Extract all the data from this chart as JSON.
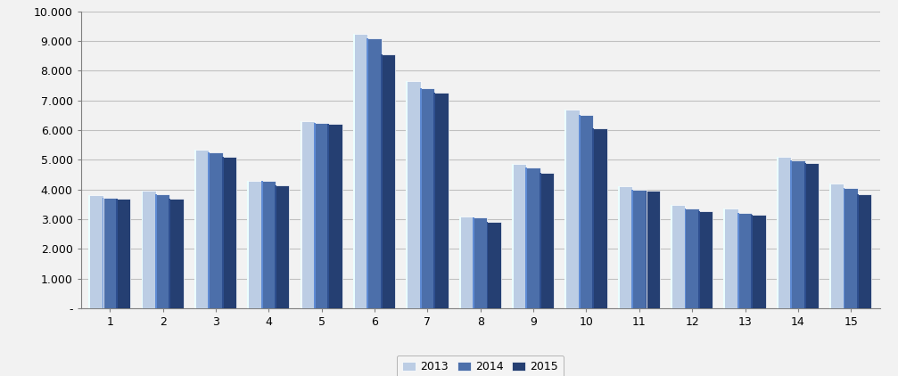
{
  "categories": [
    1,
    2,
    3,
    4,
    5,
    6,
    7,
    8,
    9,
    10,
    11,
    12,
    13,
    14,
    15
  ],
  "series": {
    "2013": [
      3800,
      3950,
      5350,
      4300,
      6300,
      9250,
      7650,
      3100,
      4850,
      6700,
      4100,
      3480,
      3350,
      5100,
      4200
    ],
    "2014": [
      3720,
      3850,
      5250,
      4300,
      6230,
      9100,
      7420,
      3050,
      4750,
      6500,
      3980,
      3350,
      3200,
      4980,
      4050
    ],
    "2015": [
      3680,
      3700,
      5100,
      4150,
      6200,
      8550,
      7250,
      2900,
      4550,
      6050,
      3950,
      3280,
      3150,
      4900,
      3850
    ]
  },
  "colors": {
    "2013": "#bccde4",
    "2014": "#4c6faa",
    "2015": "#253f72"
  },
  "legend_labels": [
    "2013",
    "2014",
    "2015"
  ],
  "ylim": [
    0,
    10000
  ],
  "yticks": [
    0,
    1000,
    2000,
    3000,
    4000,
    5000,
    6000,
    7000,
    8000,
    9000,
    10000
  ],
  "ytick_labels": [
    "-",
    "1.000",
    "2.000",
    "3.000",
    "4.000",
    "5.000",
    "6.000",
    "7.000",
    "8.000",
    "9.000",
    "10.000"
  ],
  "background_color": "#f2f2f2",
  "plot_background": "#f2f2f2",
  "figure_background": "#f2f2f2",
  "bar_width": 0.26,
  "grid_color": "#c0c0c0",
  "spine_color": "#808080",
  "tick_fontsize": 9,
  "legend_fontsize": 9
}
